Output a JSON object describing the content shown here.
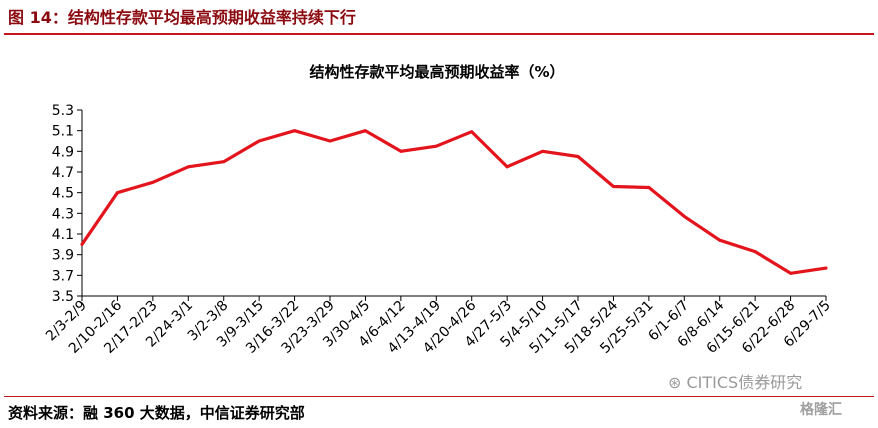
{
  "figure": {
    "title": "图 14：结构性存款平均最高预期收益率持续下行",
    "source": "资料来源：融 360 大数据，中信证券研究部",
    "watermark": "CITICS债券研究",
    "watermark_secondary": "格隆汇"
  },
  "colors": {
    "accent": "#c4161c",
    "title_text": "#8b0a10",
    "line": "#e3141c"
  },
  "chart_data": {
    "type": "line",
    "title": "结构性存款平均最高预期收益率（%）",
    "xlabel": "",
    "ylabel": "",
    "ylim": [
      3.5,
      5.3
    ],
    "yticks": [
      3.5,
      3.7,
      3.9,
      4.1,
      4.3,
      4.5,
      4.7,
      4.9,
      5.1,
      5.3
    ],
    "ytick_labels": [
      "3.5",
      "3.7",
      "3.9",
      "4.1",
      "4.3",
      "4.5",
      "4.7",
      "4.9",
      "5.1",
      "5.3"
    ],
    "grid": false,
    "legend": "none",
    "categories": [
      "2/3-2/9",
      "2/10-2/16",
      "2/17-2/23",
      "2/24-3/1",
      "3/2-3/8",
      "3/9-3/15",
      "3/16-3/22",
      "3/23-3/29",
      "3/30-4/5",
      "4/6-4/12",
      "4/13-4/19",
      "4/20-4/26",
      "4/27-5/3",
      "5/4-5/10",
      "5/11-5/17",
      "5/18-5/24",
      "5/25-5/31",
      "6/1-6/7",
      "6/8-6/14",
      "6/15-6/21",
      "6/22-6/28",
      "6/29-7/5"
    ],
    "series": [
      {
        "values": [
          4.0,
          4.5,
          4.6,
          4.75,
          4.8,
          5.0,
          5.1,
          5.0,
          5.1,
          4.9,
          4.95,
          5.09,
          4.75,
          4.9,
          4.85,
          4.56,
          4.55,
          4.27,
          4.04,
          3.93,
          3.72,
          3.77
        ]
      }
    ]
  }
}
